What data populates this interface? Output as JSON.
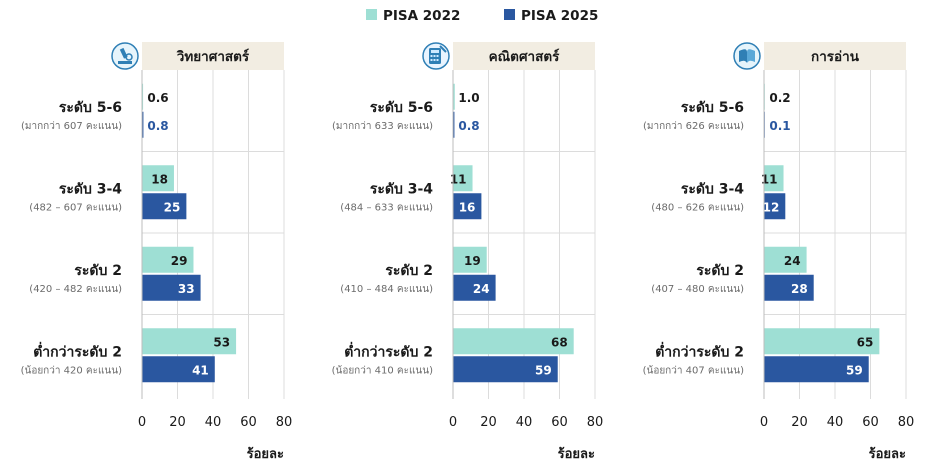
{
  "chart_data": {
    "type": "bar",
    "orientation": "horizontal",
    "legend": {
      "position": "top-center",
      "items": [
        {
          "label": "PISA 2022",
          "color": "#9edfd4"
        },
        {
          "label": "PISA 2025",
          "color": "#2a57a0"
        }
      ]
    },
    "xlim": [
      0,
      80
    ],
    "xticks": [
      "0",
      "20",
      "40",
      "60",
      "80"
    ],
    "xlabel": "ร้อยละ",
    "grid": true,
    "panels": [
      {
        "title": "วิทยาศาสตร์",
        "icon": "microscope-icon",
        "levels": [
          {
            "label": "ระดับ 5-6",
            "range": "(มากกว่า 607 คะแนน)",
            "v2022": 0.6,
            "v2025": 0.8,
            "t2022": "0.6",
            "t2025": "0.8"
          },
          {
            "label": "ระดับ 3-4",
            "range": "(482 – 607 คะแนน)",
            "v2022": 18,
            "v2025": 25,
            "t2022": "18",
            "t2025": "25"
          },
          {
            "label": "ระดับ 2",
            "range": "(420 – 482 คะแนน)",
            "v2022": 29,
            "v2025": 33,
            "t2022": "29",
            "t2025": "33"
          },
          {
            "label": "ต่ำกว่าระดับ 2",
            "range": "(น้อยกว่า 420 คะแนน)",
            "v2022": 53,
            "v2025": 41,
            "t2022": "53",
            "t2025": "41"
          }
        ]
      },
      {
        "title": "คณิตศาสตร์",
        "icon": "calculator-icon",
        "levels": [
          {
            "label": "ระดับ 5-6",
            "range": "(มากกว่า 633 คะแนน)",
            "v2022": 1.0,
            "v2025": 0.8,
            "t2022": "1.0",
            "t2025": "0.8"
          },
          {
            "label": "ระดับ 3-4",
            "range": "(484 – 633 คะแนน)",
            "v2022": 11,
            "v2025": 16,
            "t2022": "11",
            "t2025": "16"
          },
          {
            "label": "ระดับ 2",
            "range": "(410 – 484 คะแนน)",
            "v2022": 19,
            "v2025": 24,
            "t2022": "19",
            "t2025": "24"
          },
          {
            "label": "ต่ำกว่าระดับ 2",
            "range": "(น้อยกว่า 410 คะแนน)",
            "v2022": 68,
            "v2025": 59,
            "t2022": "68",
            "t2025": "59"
          }
        ]
      },
      {
        "title": "การอ่าน",
        "icon": "book-icon",
        "levels": [
          {
            "label": "ระดับ 5-6",
            "range": "(มากกว่า 626 คะแนน)",
            "v2022": 0.2,
            "v2025": 0.1,
            "t2022": "0.2",
            "t2025": "0.1"
          },
          {
            "label": "ระดับ 3-4",
            "range": "(480 – 626 คะแนน)",
            "v2022": 11,
            "v2025": 12,
            "t2022": "11",
            "t2025": "12"
          },
          {
            "label": "ระดับ 2",
            "range": "(407 – 480 คะแนน)",
            "v2022": 24,
            "v2025": 28,
            "t2022": "24",
            "t2025": "28"
          },
          {
            "label": "ต่ำกว่าระดับ 2",
            "range": "(น้อยกว่า 407 คะแนน)",
            "v2022": 65,
            "v2025": 59,
            "t2022": "65",
            "t2025": "59"
          }
        ]
      }
    ]
  }
}
